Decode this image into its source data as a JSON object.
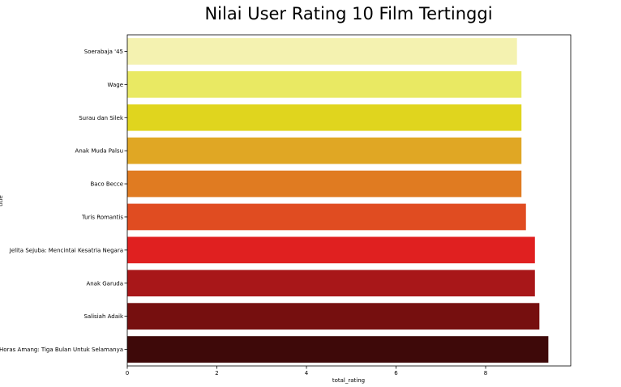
{
  "chart_data": {
    "type": "bar",
    "orientation": "horizontal",
    "title": "Nilai User Rating 10 Film Tertinggi",
    "xlabel": "total_rating",
    "ylabel": "title",
    "xlim": [
      0,
      9.9
    ],
    "xticks": [
      0,
      2,
      4,
      6,
      8
    ],
    "grid": false,
    "legend": "none",
    "categories": [
      "Soerabaja '45",
      "Wage",
      "Surau dan Silek",
      "Anak Muda Palsu",
      "Baco Becce",
      "Turis Romantis",
      "Jelita Sejuba: Mencintai Kesatria Negara",
      "Anak Garuda",
      "Salisiah Adaik",
      "Horas Amang: Tiga Bulan Untuk Selamanya"
    ],
    "values": [
      8.7,
      8.8,
      8.8,
      8.8,
      8.8,
      8.9,
      9.1,
      9.1,
      9.2,
      9.4
    ],
    "colors": [
      "#f4f2b0",
      "#e9e963",
      "#e0d51e",
      "#e0a724",
      "#e07b21",
      "#e04c21",
      "#e02020",
      "#a81719",
      "#760f0f",
      "#3e0909"
    ]
  }
}
